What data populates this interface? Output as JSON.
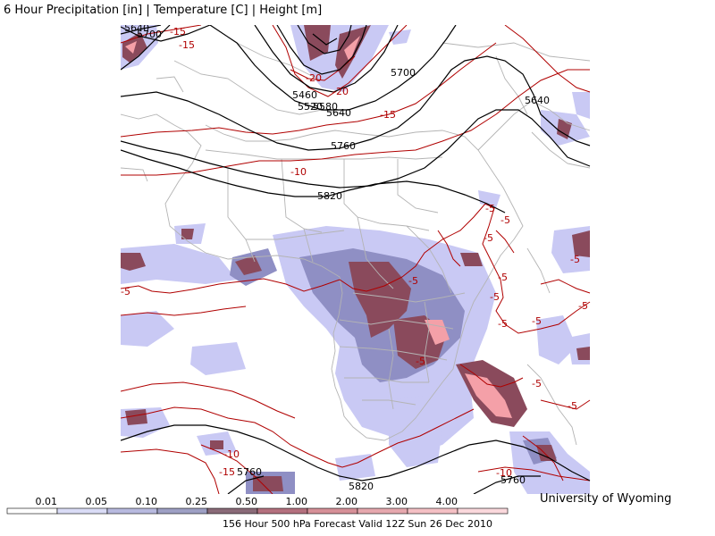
{
  "title": "6 Hour Precipitation [in] | Temperature [C] | Height [m]",
  "credit": "University of Wyoming",
  "caption": "156 Hour 500 hPa Forecast Valid 12Z Sun 26 Dec 2010",
  "colors": {
    "height_contour": "#000000",
    "temperature_contour": "#b00000",
    "borders": "#b4b4b4",
    "precip_light": "#c9c9f4",
    "precip_medium": "#8f8fc4",
    "precip_heavy": "#8a4a5c",
    "precip_extreme": "#f4a0a8"
  },
  "legend": {
    "thresholds": [
      "0.01",
      "0.05",
      "0.10",
      "0.25",
      "0.50",
      "1.00",
      "2.00",
      "3.00",
      "4.00"
    ],
    "colors": [
      "#ffffff",
      "#dadcf6",
      "#b8badf",
      "#9ea0c4",
      "#8a6a78",
      "#b4707e",
      "#d69098",
      "#e6a8ae",
      "#f4c0c4",
      "#fad8dc"
    ]
  },
  "height_labels": [
    "5640",
    "5700",
    "5460",
    "5520",
    "5580",
    "5640",
    "5700",
    "5640",
    "5760",
    "5820",
    "5760",
    "5820",
    "5760"
  ],
  "temperature_labels": [
    "-15",
    "-15",
    "-20",
    "-20",
    "-15",
    "-10",
    "-5",
    "-5",
    "-5",
    "-5",
    "-5",
    "-5",
    "-5",
    "-5",
    "-5",
    "-5",
    "-5",
    "-5",
    "-5",
    "-5",
    "-10",
    "-15",
    "-10"
  ]
}
